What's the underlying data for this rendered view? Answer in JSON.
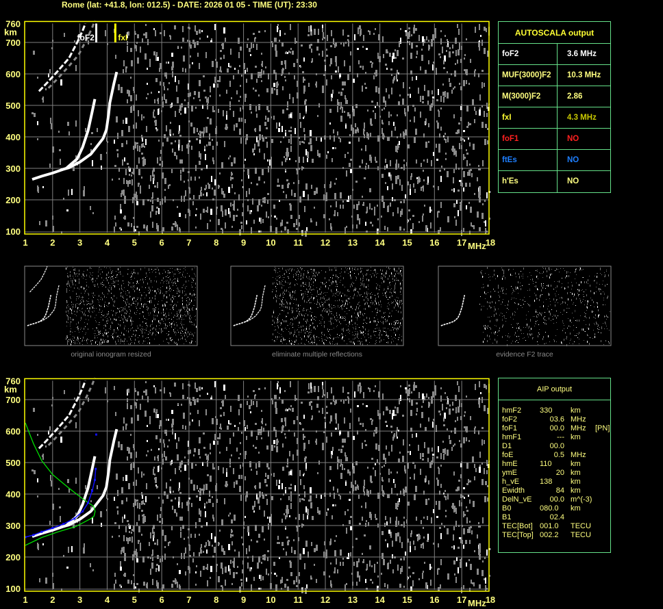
{
  "header": {
    "title": "Rome (lat: +41.8, lon: 012.5) - DATE: 2026 01 05 - TIME (UT): 23:30"
  },
  "colors": {
    "axis_text": "#ffff80",
    "frame": "#ffff00",
    "grid": "#808080",
    "table_border": "#66e38a",
    "foF1": "#ff2020",
    "ftEs": "#1e7fff",
    "profile": "#00e000",
    "aip_points": "#1010ff"
  },
  "chart_data": [
    {
      "type": "scatter",
      "name_hint": "ionogram-autoscala",
      "xlabel": "MHz",
      "ylabel": "km",
      "xlim": [
        1,
        18
      ],
      "ylim": [
        100,
        760
      ],
      "x_ticks": [
        "1",
        "2",
        "3",
        "4",
        "5",
        "6",
        "7",
        "8",
        "9",
        "10",
        "11",
        "12",
        "13",
        "14",
        "15",
        "16",
        "17",
        "18"
      ],
      "y_ticks": [
        "100",
        "200",
        "300",
        "400",
        "500",
        "600",
        "700",
        "760"
      ],
      "grid": true,
      "annotations": {
        "foF2_label": "foF2",
        "foF2": 3.6,
        "fxI_label": "fxI",
        "fxI": 4.3
      },
      "traces": {
        "F2_ordinary": [
          [
            1.25,
            265
          ],
          [
            1.6,
            275
          ],
          [
            2.0,
            285
          ],
          [
            2.5,
            300
          ],
          [
            2.9,
            330
          ],
          [
            3.1,
            367
          ],
          [
            3.3,
            420
          ],
          [
            3.45,
            480
          ],
          [
            3.55,
            520
          ]
        ],
        "F2_extraordinary": [
          [
            2.3,
            295
          ],
          [
            2.6,
            302
          ],
          [
            3.0,
            320
          ],
          [
            3.4,
            345
          ],
          [
            3.6,
            367
          ],
          [
            3.85,
            395
          ],
          [
            3.97,
            422
          ],
          [
            4.05,
            470
          ],
          [
            4.1,
            509
          ],
          [
            4.25,
            570
          ],
          [
            4.35,
            606
          ]
        ],
        "F2_second_hop": [
          [
            1.5,
            545
          ],
          [
            1.8,
            572
          ],
          [
            2.2,
            610
          ],
          [
            2.6,
            650
          ],
          [
            2.9,
            700
          ],
          [
            3.1,
            737
          ],
          [
            3.2,
            760
          ]
        ]
      }
    },
    {
      "type": "scatter",
      "name_hint": "ionogram-aip",
      "xlabel": "MHz",
      "ylabel": "km",
      "xlim": [
        1,
        18
      ],
      "ylim": [
        100,
        760
      ],
      "x_ticks": [
        "1",
        "2",
        "3",
        "4",
        "5",
        "6",
        "7",
        "8",
        "9",
        "10",
        "11",
        "12",
        "13",
        "14",
        "15",
        "16",
        "17",
        "18"
      ],
      "y_ticks": [
        "100",
        "200",
        "300",
        "400",
        "500",
        "600",
        "700",
        "760"
      ],
      "grid": true,
      "profile": [
        [
          1.0,
          626
        ],
        [
          1.3,
          560
        ],
        [
          1.6,
          506
        ],
        [
          2.0,
          462
        ],
        [
          2.58,
          420
        ],
        [
          3.1,
          385
        ],
        [
          3.5,
          361
        ],
        [
          3.56,
          345
        ],
        [
          3.52,
          330
        ],
        [
          3.4,
          322
        ],
        [
          3.1,
          308
        ],
        [
          2.83,
          296
        ],
        [
          2.2,
          280
        ],
        [
          1.6,
          262
        ],
        [
          1.0,
          237
        ]
      ],
      "aip_points": [
        [
          1.0,
          263
        ],
        [
          1.3,
          270
        ],
        [
          1.6,
          280
        ],
        [
          2.0,
          292
        ],
        [
          2.4,
          305
        ],
        [
          2.8,
          322
        ],
        [
          3.1,
          345
        ],
        [
          3.3,
          372
        ],
        [
          3.45,
          410
        ],
        [
          3.55,
          445
        ],
        [
          3.58,
          480
        ],
        [
          3.6,
          589
        ]
      ]
    }
  ],
  "thumbnails": [
    {
      "caption": "original ionogram resized"
    },
    {
      "caption": "eliminate multiple reflections"
    },
    {
      "caption": "evidence F2 trace"
    }
  ],
  "autoscala": {
    "title": "AUTOSCALA output",
    "rows": [
      {
        "label": "foF2",
        "value": "3.6 MHz",
        "color": "#ffffff",
        "vcolor": "#ffffff"
      },
      {
        "label": "MUF(3000)F2",
        "value": "10.3 MHz",
        "color": "#ffff80",
        "vcolor": "#ffff80"
      },
      {
        "label": "M(3000)F2",
        "value": "2.86",
        "color": "#ffff80",
        "vcolor": "#ffff80"
      },
      {
        "label": "fxI",
        "value": "4.3 MHz",
        "color": "#ffff33",
        "vcolor": "#c8c800"
      },
      {
        "label": "foF1",
        "value": "NO",
        "color": "#ff2020",
        "vcolor": "#ff2020"
      },
      {
        "label": "ftEs",
        "value": "NO",
        "color": "#1e7fff",
        "vcolor": "#1e7fff"
      },
      {
        "label": "h'Es",
        "value": "NO",
        "color": "#ffff80",
        "vcolor": "#ffff80"
      }
    ]
  },
  "aip": {
    "title": "AIP output",
    "rows": [
      {
        "name": "hmF2",
        "value": "330",
        "unit": "km",
        "extra": ""
      },
      {
        "name": "foF2",
        "value": "03.6",
        "unit": "MHz",
        "extra": ""
      },
      {
        "name": "foF1",
        "value": "00.0",
        "unit": "MHz",
        "extra": "[PN]"
      },
      {
        "name": "hmF1",
        "value": "---",
        "unit": "km",
        "extra": ""
      },
      {
        "name": "D1",
        "value": "00.0",
        "unit": "",
        "extra": ""
      },
      {
        "name": "foE",
        "value": "0.5",
        "unit": "MHz",
        "extra": ""
      },
      {
        "name": "hmE",
        "value": "110",
        "unit": "km",
        "extra": ""
      },
      {
        "name": "ymE",
        "value": "20",
        "unit": "km",
        "extra": ""
      },
      {
        "name": "h_vE",
        "value": "138",
        "unit": "km",
        "extra": ""
      },
      {
        "name": "Ewidth",
        "value": "84",
        "unit": "km",
        "extra": ""
      },
      {
        "name": "DelN_vE",
        "value": "00.0",
        "unit": "m^(-3)",
        "extra": ""
      },
      {
        "name": "B0",
        "value": "080.0",
        "unit": "km",
        "extra": ""
      },
      {
        "name": "B1",
        "value": "02.4",
        "unit": "",
        "extra": ""
      },
      {
        "name": "TEC[Bot]",
        "value": "001.0",
        "unit": "TECU",
        "extra": ""
      },
      {
        "name": "TEC[Top]",
        "value": "002.2",
        "unit": "TECU",
        "extra": ""
      }
    ]
  }
}
